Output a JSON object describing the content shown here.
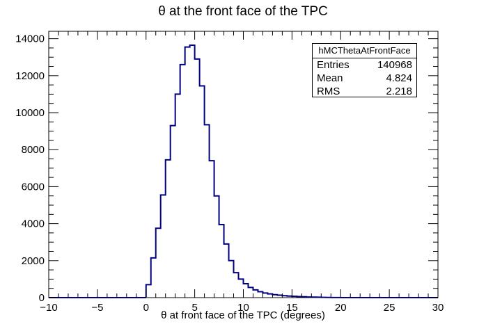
{
  "chart_data": {
    "type": "histogram",
    "title": "θ at the front face of the TPC",
    "xlabel": "θ at front face of the TPC (degrees)",
    "ylabel": "",
    "xlim": [
      -10,
      30
    ],
    "ylim": [
      0,
      14400
    ],
    "bin_width": 0.5,
    "line_color": "#000080",
    "x_ticks": [
      -10,
      -5,
      0,
      5,
      10,
      15,
      20,
      25,
      30
    ],
    "x_tick_labels": [
      "−10",
      "−5",
      "0",
      "5",
      "10",
      "15",
      "20",
      "25",
      "30"
    ],
    "y_ticks": [
      0,
      2000,
      4000,
      6000,
      8000,
      10000,
      12000,
      14000
    ],
    "y_tick_labels": [
      "0",
      "2000",
      "4000",
      "6000",
      "8000",
      "10000",
      "12000",
      "14000"
    ],
    "grid": false,
    "bins": [
      {
        "x0": 0.0,
        "count": 700
      },
      {
        "x0": 0.5,
        "count": 2150
      },
      {
        "x0": 1.0,
        "count": 3750
      },
      {
        "x0": 1.5,
        "count": 5550
      },
      {
        "x0": 2.0,
        "count": 7450
      },
      {
        "x0": 2.5,
        "count": 9300
      },
      {
        "x0": 3.0,
        "count": 11000
      },
      {
        "x0": 3.5,
        "count": 12600
      },
      {
        "x0": 4.0,
        "count": 13550
      },
      {
        "x0": 4.5,
        "count": 13650
      },
      {
        "x0": 5.0,
        "count": 12900
      },
      {
        "x0": 5.5,
        "count": 11450
      },
      {
        "x0": 6.0,
        "count": 9350
      },
      {
        "x0": 6.5,
        "count": 7400
      },
      {
        "x0": 7.0,
        "count": 5500
      },
      {
        "x0": 7.5,
        "count": 3950
      },
      {
        "x0": 8.0,
        "count": 2900
      },
      {
        "x0": 8.5,
        "count": 2000
      },
      {
        "x0": 9.0,
        "count": 1350
      },
      {
        "x0": 9.5,
        "count": 1000
      },
      {
        "x0": 10.0,
        "count": 750
      },
      {
        "x0": 10.5,
        "count": 550
      },
      {
        "x0": 11.0,
        "count": 420
      },
      {
        "x0": 11.5,
        "count": 320
      },
      {
        "x0": 12.0,
        "count": 250
      },
      {
        "x0": 12.5,
        "count": 200
      },
      {
        "x0": 13.0,
        "count": 160
      },
      {
        "x0": 13.5,
        "count": 130
      },
      {
        "x0": 14.0,
        "count": 105
      },
      {
        "x0": 14.5,
        "count": 85
      },
      {
        "x0": 15.0,
        "count": 70
      },
      {
        "x0": 15.5,
        "count": 55
      },
      {
        "x0": 16.0,
        "count": 45
      },
      {
        "x0": 16.5,
        "count": 35
      },
      {
        "x0": 17.0,
        "count": 28
      },
      {
        "x0": 17.5,
        "count": 22
      },
      {
        "x0": 18.0,
        "count": 15
      },
      {
        "x0": 18.5,
        "count": 10
      },
      {
        "x0": 19.0,
        "count": 6
      },
      {
        "x0": 19.5,
        "count": 3
      }
    ]
  },
  "stats": {
    "name": "hMCThetaAtFrontFace",
    "rows": [
      {
        "label": "Entries",
        "value": "140968"
      },
      {
        "label": "Mean",
        "value": "4.824"
      },
      {
        "label": "RMS",
        "value": "2.218"
      }
    ]
  }
}
